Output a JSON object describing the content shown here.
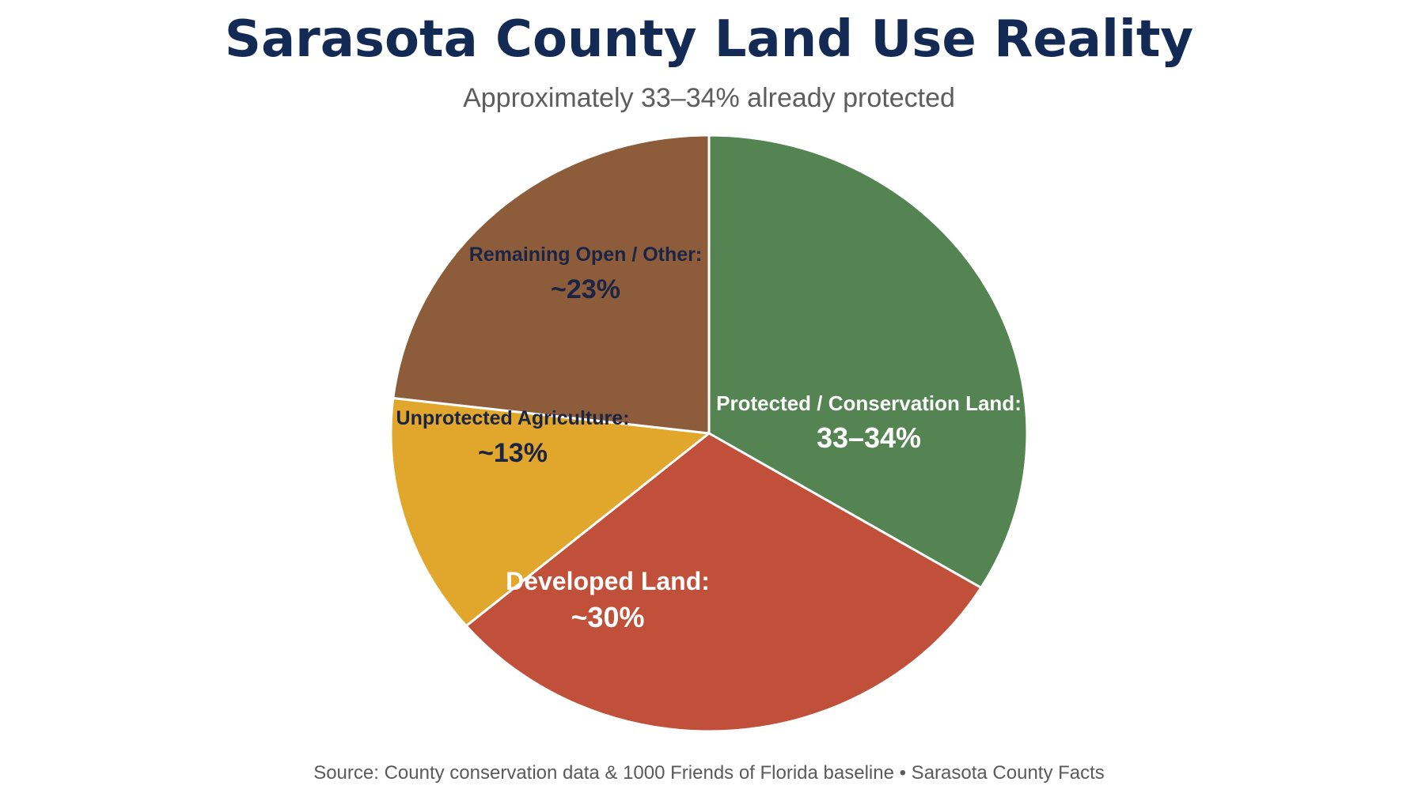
{
  "header": {
    "title": "Sarasota County Land Use Reality",
    "subtitle": "Approximately 33–34% already protected"
  },
  "footer": {
    "source": "Source: County conservation data & 1000 Friends of Florida baseline • Sarasota County Facts"
  },
  "chart_data": {
    "type": "pie",
    "title": "Sarasota County Land Use Reality",
    "subtitle": "Approximately 33–34% already protected",
    "start": "12 o'clock",
    "direction": "clockwise",
    "legend": "none (labels inside slices)",
    "slices": [
      {
        "name": "Protected / Conservation Land",
        "label": "Protected / Conservation Land:",
        "value_label": "33–34%",
        "value": 33.5,
        "color": "#548452",
        "text_color": "#ffffff"
      },
      {
        "name": "Developed Land",
        "label": "Developed Land:",
        "value_label": "~30%",
        "value": 30,
        "color": "#c0503a",
        "text_color": "#ffffff"
      },
      {
        "name": "Unprotected Agriculture",
        "label": "Unprotected Agriculture:",
        "value_label": "~13%",
        "value": 13,
        "color": "#e1a62c",
        "text_color": "#1a2544"
      },
      {
        "name": "Remaining Open / Other",
        "label": "Remaining Open / Other:",
        "value_label": "~23%",
        "value": 23,
        "color": "#8d5c3a",
        "text_color": "#1a2544"
      }
    ]
  }
}
